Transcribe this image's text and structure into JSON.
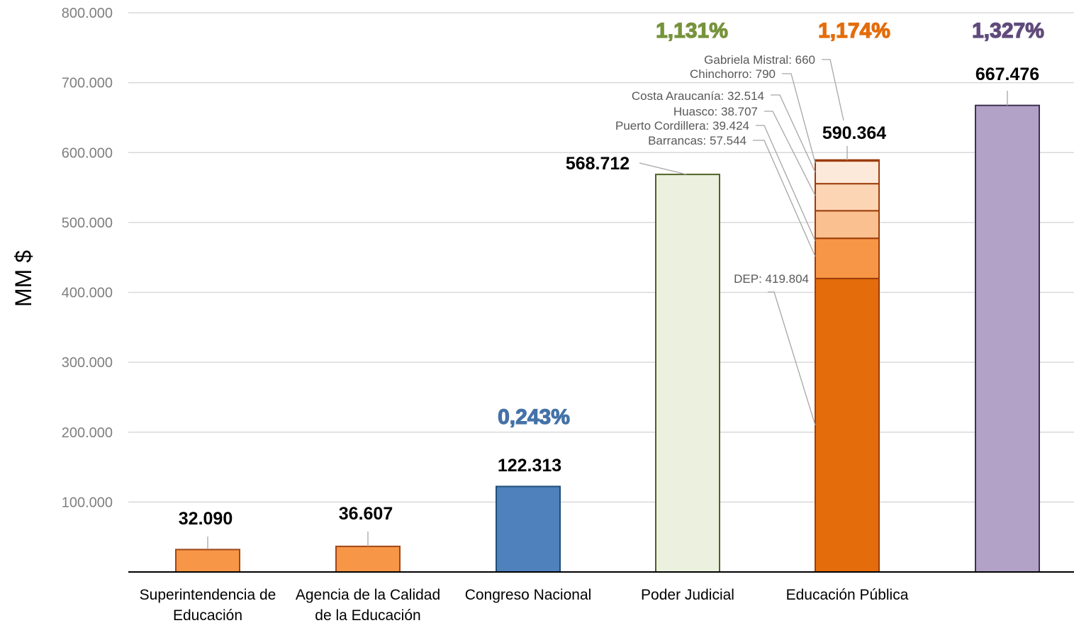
{
  "chart_data": {
    "type": "bar",
    "ylabel": "MM $",
    "ylim": [
      0,
      800000
    ],
    "yticks": [
      100000,
      200000,
      300000,
      400000,
      500000,
      600000,
      700000,
      800000
    ],
    "ytick_labels": [
      "100.000",
      "200.000",
      "300.000",
      "400.000",
      "500.000",
      "600.000",
      "700.000",
      "800.000"
    ],
    "grid": true,
    "bars": [
      {
        "category": [
          "Superintendencia de",
          "Educación"
        ],
        "value": 32090,
        "value_label": "32.090",
        "color": "#F79646",
        "stroke": "#A0471A"
      },
      {
        "category": [
          "Agencia de la Calidad",
          "de la Educación"
        ],
        "value": 36607,
        "value_label": "36.607",
        "color": "#F79646",
        "stroke": "#A0471A"
      },
      {
        "category": [
          "Congreso Nacional"
        ],
        "value": 122313,
        "value_label": "122.313",
        "color": "#4F81BD",
        "stroke": "#1F4E79",
        "share_label": "0,243%",
        "share_color": "#4472A8"
      },
      {
        "category": [
          "Poder Judicial"
        ],
        "value": 568712,
        "value_label": "568.712",
        "color": "#EBF1DE",
        "stroke": "#4F6228",
        "share_label": "1,131%",
        "share_color": "#77933C"
      },
      {
        "category": [
          "Educación Pública"
        ],
        "value": 590364,
        "value_label": "590.364",
        "color": "#E46C0A",
        "stroke": "#9C3C0A",
        "share_label": "1,174%",
        "share_color": "#E46C0A",
        "segments": [
          {
            "label": "DEP: 419.804",
            "value": 419804,
            "color": "#E46C0A"
          },
          {
            "label": "Barrancas: 57.544",
            "value": 57544,
            "color": "#F79646"
          },
          {
            "label": "Puerto Cordillera: 39.424",
            "value": 39424,
            "color": "#FAC090"
          },
          {
            "label": "Huasco: 38.707",
            "value": 38707,
            "color": "#FCD5B5"
          },
          {
            "label": "Costa Araucanía:  32.514",
            "value": 32514,
            "color": "#FDE9D9"
          },
          {
            "label": "Chinchorro: 790",
            "value": 790,
            "color": "#FDE9D9"
          },
          {
            "label": "Gabriela Mistral: 660",
            "value": 660,
            "color": "#FDE9D9"
          }
        ]
      },
      {
        "category": [
          ""
        ],
        "value": 667476,
        "value_label": "667.476",
        "color": "#B2A2C7",
        "stroke": "#3F3151",
        "share_label": "1,327%",
        "share_color": "#604A7B"
      }
    ]
  }
}
